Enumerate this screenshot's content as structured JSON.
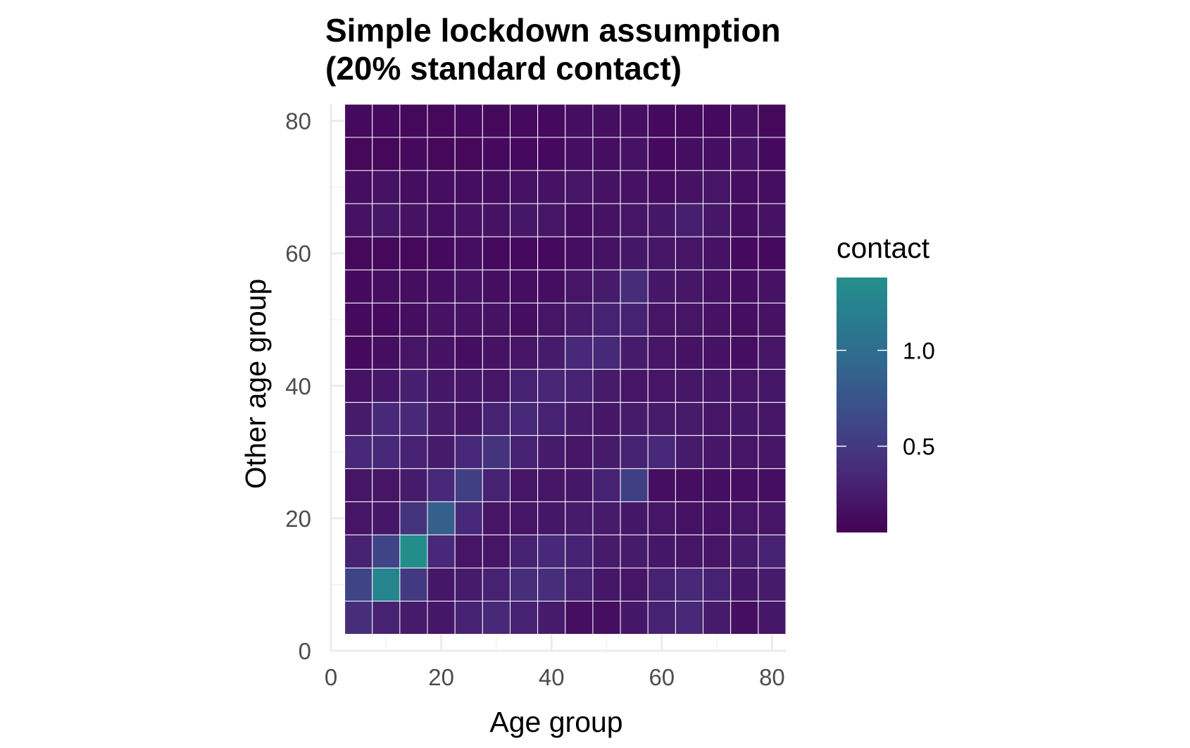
{
  "chart_data": {
    "type": "heatmap",
    "title": "Simple lockdown assumption\n(20% standard contact)",
    "title_lines": [
      "Simple lockdown assumption",
      "(20% standard contact)"
    ],
    "xlabel": "Age group",
    "ylabel": "Other age group",
    "xlim": [
      0,
      82.5
    ],
    "ylim": [
      0,
      82.5
    ],
    "x_ticks": [
      0,
      20,
      40,
      60,
      80
    ],
    "y_ticks": [
      0,
      20,
      40,
      60,
      80
    ],
    "x_tick_labels": [
      "0",
      "20",
      "40",
      "60",
      "80"
    ],
    "y_tick_labels": [
      "0",
      "20",
      "40",
      "60",
      "80"
    ],
    "x_centers": [
      5,
      10,
      15,
      20,
      25,
      30,
      35,
      40,
      45,
      50,
      55,
      60,
      65,
      70,
      75,
      80
    ],
    "y_centers": [
      5,
      10,
      15,
      20,
      25,
      30,
      35,
      40,
      45,
      50,
      55,
      60,
      65,
      70,
      75,
      80
    ],
    "cell_width": 5,
    "values": [
      [
        0.4,
        0.3,
        0.25,
        0.22,
        0.3,
        0.35,
        0.3,
        0.25,
        0.15,
        0.15,
        0.22,
        0.3,
        0.35,
        0.25,
        0.15,
        0.22
      ],
      [
        0.6,
        1.25,
        0.5,
        0.22,
        0.25,
        0.3,
        0.4,
        0.4,
        0.3,
        0.22,
        0.2,
        0.3,
        0.35,
        0.3,
        0.22,
        0.25
      ],
      [
        0.3,
        0.6,
        1.35,
        0.35,
        0.2,
        0.2,
        0.3,
        0.35,
        0.3,
        0.25,
        0.25,
        0.22,
        0.2,
        0.2,
        0.25,
        0.3
      ],
      [
        0.2,
        0.22,
        0.45,
        0.85,
        0.35,
        0.2,
        0.2,
        0.22,
        0.25,
        0.25,
        0.22,
        0.2,
        0.18,
        0.18,
        0.2,
        0.2
      ],
      [
        0.2,
        0.2,
        0.25,
        0.35,
        0.55,
        0.3,
        0.2,
        0.2,
        0.22,
        0.3,
        0.55,
        0.15,
        0.15,
        0.15,
        0.15,
        0.15
      ],
      [
        0.35,
        0.35,
        0.3,
        0.25,
        0.35,
        0.45,
        0.3,
        0.25,
        0.2,
        0.25,
        0.3,
        0.35,
        0.25,
        0.22,
        0.2,
        0.2
      ],
      [
        0.25,
        0.35,
        0.35,
        0.25,
        0.22,
        0.3,
        0.35,
        0.3,
        0.25,
        0.22,
        0.25,
        0.25,
        0.25,
        0.2,
        0.22,
        0.2
      ],
      [
        0.18,
        0.22,
        0.28,
        0.22,
        0.22,
        0.2,
        0.3,
        0.32,
        0.3,
        0.25,
        0.2,
        0.2,
        0.22,
        0.22,
        0.2,
        0.22
      ],
      [
        0.12,
        0.15,
        0.2,
        0.18,
        0.15,
        0.18,
        0.2,
        0.25,
        0.35,
        0.35,
        0.25,
        0.2,
        0.18,
        0.18,
        0.15,
        0.2
      ],
      [
        0.12,
        0.12,
        0.15,
        0.18,
        0.18,
        0.18,
        0.15,
        0.2,
        0.25,
        0.3,
        0.3,
        0.2,
        0.2,
        0.18,
        0.15,
        0.18
      ],
      [
        0.12,
        0.15,
        0.15,
        0.15,
        0.18,
        0.15,
        0.15,
        0.15,
        0.2,
        0.25,
        0.38,
        0.22,
        0.22,
        0.18,
        0.15,
        0.18
      ],
      [
        0.1,
        0.1,
        0.1,
        0.12,
        0.15,
        0.12,
        0.12,
        0.12,
        0.15,
        0.18,
        0.22,
        0.2,
        0.2,
        0.18,
        0.12,
        0.12
      ],
      [
        0.18,
        0.22,
        0.18,
        0.15,
        0.18,
        0.18,
        0.22,
        0.2,
        0.15,
        0.18,
        0.2,
        0.22,
        0.28,
        0.22,
        0.15,
        0.18
      ],
      [
        0.15,
        0.18,
        0.15,
        0.15,
        0.15,
        0.15,
        0.18,
        0.18,
        0.2,
        0.18,
        0.18,
        0.15,
        0.18,
        0.2,
        0.15,
        0.15
      ],
      [
        0.1,
        0.1,
        0.12,
        0.1,
        0.1,
        0.12,
        0.12,
        0.12,
        0.15,
        0.15,
        0.18,
        0.12,
        0.15,
        0.15,
        0.18,
        0.12
      ],
      [
        0.12,
        0.12,
        0.1,
        0.1,
        0.12,
        0.1,
        0.12,
        0.12,
        0.15,
        0.15,
        0.15,
        0.12,
        0.12,
        0.12,
        0.15,
        0.1
      ]
    ],
    "colorscale": "viridis",
    "color_range": [
      0.05,
      1.38
    ],
    "legend": {
      "title": "contact",
      "placement": "right",
      "ticks": [
        0.5,
        1.0
      ],
      "tick_labels": [
        "0.5",
        "1.0"
      ]
    },
    "grid": true
  }
}
